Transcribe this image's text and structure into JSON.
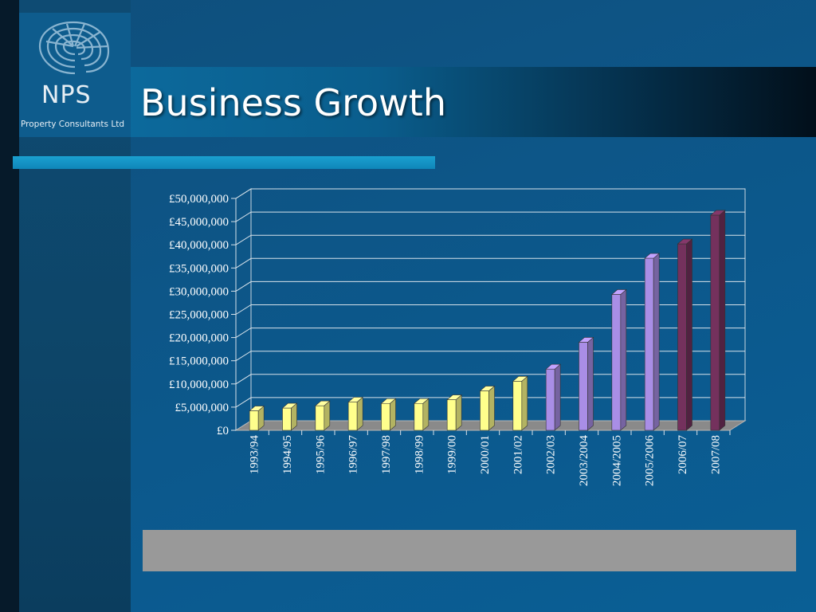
{
  "slide": {
    "title": "Business Growth",
    "logo": {
      "name": "NPS",
      "subtitle": "Property Consultants Ltd"
    }
  },
  "colors": {
    "early": "#ffff8c",
    "mid": "#a98ee6",
    "late": "#74315d"
  },
  "chart_data": {
    "type": "bar",
    "categories": [
      "1993/94",
      "1994/95",
      "1995/96",
      "1996/97",
      "1997/98",
      "1998/99",
      "1999/00",
      "2000/01",
      "2001/02",
      "2002/03",
      "2003/2004",
      "2004/2005",
      "2005/2006",
      "2006/07",
      "2007/08"
    ],
    "values": [
      4200000,
      4800000,
      5300000,
      6100000,
      5800000,
      5800000,
      6600000,
      8500000,
      10600000,
      13200000,
      19000000,
      29300000,
      37100000,
      40200000,
      46400000
    ],
    "bar_colors": [
      "early",
      "early",
      "early",
      "early",
      "early",
      "early",
      "early",
      "early",
      "early",
      "mid",
      "mid",
      "mid",
      "mid",
      "late",
      "late"
    ],
    "ylim": [
      0,
      50000000
    ],
    "yticks": [
      {
        "value": 0,
        "label": "£0"
      },
      {
        "value": 5000000,
        "label": "£5,000,000"
      },
      {
        "value": 10000000,
        "label": "£10,000,000"
      },
      {
        "value": 15000000,
        "label": "£15,000,000"
      },
      {
        "value": 20000000,
        "label": "£20,000,000"
      },
      {
        "value": 25000000,
        "label": "£25,000,000"
      },
      {
        "value": 30000000,
        "label": "£30,000,000"
      },
      {
        "value": 35000000,
        "label": "£35,000,000"
      },
      {
        "value": 40000000,
        "label": "£40,000,000"
      },
      {
        "value": 45000000,
        "label": "£45,000,000"
      },
      {
        "value": 50000000,
        "label": "£50,000,000"
      }
    ],
    "grid": true,
    "legend": "none",
    "three_d": true
  }
}
